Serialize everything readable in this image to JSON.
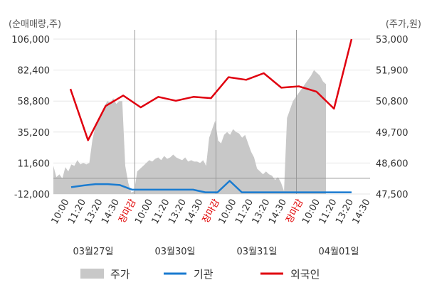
{
  "chart_data": {
    "type": "line",
    "left_axis_label": "(순매매량,주)",
    "right_axis_label": "(주가,원)",
    "left_ticks": [
      "106,000",
      "82,400",
      "58,800",
      "35,200",
      "11,600",
      "-12,000"
    ],
    "left_ylim": [
      -12000,
      106000
    ],
    "right_ticks": [
      "53,000",
      "51,900",
      "50,800",
      "49,700",
      "48,600",
      "47,500"
    ],
    "right_ylim": [
      47500,
      53000
    ],
    "x_tick_labels": [
      "10:00",
      "11:20",
      "13:20",
      "14:30",
      "장마감",
      "10:00",
      "11:20",
      "13:20",
      "14:30",
      "장마감",
      "10:00",
      "11:20",
      "13:20",
      "14:30",
      "장마감",
      "10:00",
      "11:20",
      "13:20",
      "14:30"
    ],
    "close_label": "장마감",
    "dates": [
      "03월27일",
      "03월30일",
      "03월31일",
      "04월01일"
    ],
    "legend": [
      "주가",
      "기관",
      "외국인"
    ],
    "colors": {
      "price": "#c8c8c8",
      "institution": "#1a7bd0",
      "foreign": "#e0000f",
      "grid": "#e6e6e6",
      "divider": "#999999"
    },
    "price": [
      48500,
      48100,
      48200,
      48050,
      48450,
      48300,
      48550,
      48500,
      48700,
      48550,
      48600,
      48550,
      48600,
      49400,
      49900,
      50100,
      50350,
      50600,
      50800,
      50750,
      50900,
      50700,
      50800,
      50800,
      48500,
      47900,
      47550,
      47600,
      48300,
      48400,
      48500,
      48600,
      48700,
      48650,
      48750,
      48800,
      48700,
      48850,
      48750,
      48800,
      48900,
      48800,
      48750,
      48700,
      48800,
      48650,
      48700,
      48650,
      48650,
      48600,
      48700,
      48500,
      49500,
      49800,
      50100,
      49400,
      49300,
      49600,
      49700,
      49600,
      49800,
      49700,
      49650,
      49500,
      49600,
      49300,
      49000,
      48800,
      48400,
      48300,
      48200,
      48300,
      48200,
      48150,
      48000,
      48100,
      47900,
      47600,
      50200,
      50500,
      50800,
      50950,
      51100,
      51250,
      51400,
      51550,
      51700,
      51900,
      51800,
      51700,
      51500,
      51400
    ],
    "institution": [
      -6800,
      -5500,
      -4500,
      -4500,
      -5200,
      -8700,
      -8700,
      -8700,
      -8700,
      -8700,
      -8700,
      -10700,
      -10700,
      -2000,
      -10700,
      -10700,
      -10700,
      -10700,
      -10700,
      -10700,
      -10700,
      -10700,
      -10700,
      -10700
    ],
    "foreign": [
      68000,
      29000,
      55000,
      63000,
      54000,
      62000,
      59000,
      62000,
      61000,
      77000,
      75000,
      80000,
      69000,
      70000,
      66000,
      53000,
      106000
    ]
  }
}
